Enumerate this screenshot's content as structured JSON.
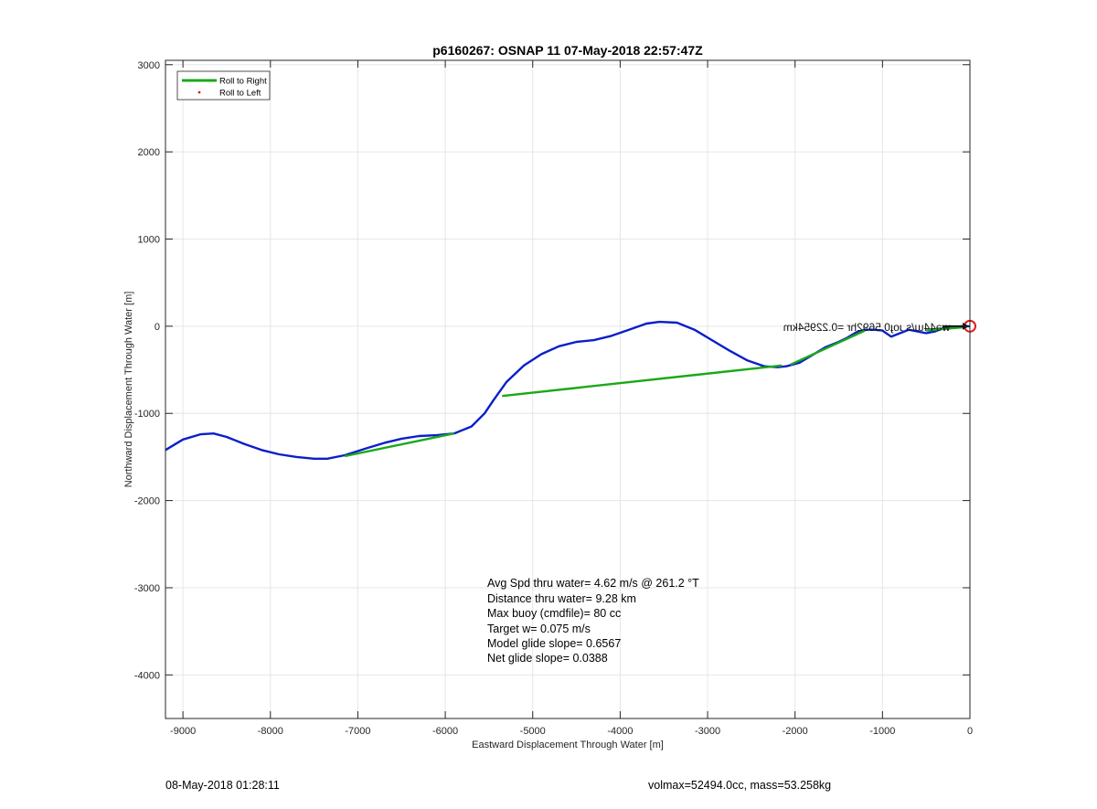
{
  "chart_data": {
    "type": "line",
    "title": "p6160267: OSNAP 11 07-May-2018 22:57:47Z",
    "xlabel": "Eastward Displacement Through Water [m]",
    "ylabel": "Northward Displacement Through Water [m]",
    "xlim": [
      -9200,
      0
    ],
    "ylim": [
      -4500,
      3050
    ],
    "xticks": [
      -9000,
      -8000,
      -7000,
      -6000,
      -5000,
      -4000,
      -3000,
      -2000,
      -1000,
      0
    ],
    "yticks": [
      3000,
      2000,
      1000,
      0,
      -1000,
      -2000,
      -3000,
      -4000
    ],
    "grid": true,
    "legend_position": "top-left",
    "legend": [
      {
        "label": "Roll to Right",
        "color": "#1aa81a",
        "style": "line"
      },
      {
        "label": "Roll to Left",
        "color": "#e31a1a",
        "style": "dot"
      }
    ],
    "series": [
      {
        "color": "#0a1fc8",
        "x": [
          -9200,
          -9000,
          -8800,
          -8650,
          -8500,
          -8300,
          -8100,
          -7900,
          -7700,
          -7500,
          -7350,
          -7150,
          -6900,
          -6700,
          -6500,
          -6300,
          -6100,
          -5900,
          -5700,
          -5550,
          -5450,
          -5300,
          -5100,
          -4900,
          -4700,
          -4500,
          -4300,
          -4100,
          -3900,
          -3700,
          -3550,
          -3350,
          -3150,
          -2950,
          -2750,
          -2550,
          -2350,
          -2200,
          -2100,
          -1950,
          -1800,
          -1650,
          -1500,
          -1400,
          -1300,
          -1200,
          -1100,
          -1000,
          -900,
          -800,
          -700,
          -600,
          -500,
          -400,
          -300,
          -200,
          -100,
          0
        ],
        "y": [
          -1420,
          -1300,
          -1240,
          -1230,
          -1270,
          -1350,
          -1420,
          -1470,
          -1500,
          -1520,
          -1520,
          -1480,
          -1400,
          -1340,
          -1290,
          -1260,
          -1250,
          -1230,
          -1150,
          -1000,
          -850,
          -640,
          -450,
          -320,
          -230,
          -180,
          -160,
          -110,
          -40,
          30,
          50,
          40,
          -40,
          -160,
          -280,
          -390,
          -460,
          -470,
          -460,
          -420,
          -330,
          -240,
          -180,
          -130,
          -70,
          -40,
          -40,
          -50,
          -120,
          -80,
          -40,
          -60,
          -80,
          -60,
          -20,
          -20,
          0,
          0
        ]
      },
      {
        "name": "Roll to Right",
        "color": "#1aa81a",
        "segments": [
          {
            "x": [
              -7150,
              -5900
            ],
            "y": [
              -1490,
              -1230
            ]
          },
          {
            "x": [
              -5350,
              -2150
            ],
            "y": [
              -800,
              -450
            ]
          },
          {
            "x": [
              -2050,
              -1200
            ],
            "y": [
              -440,
              -50
            ]
          },
          {
            "x": [
              -500,
              -50
            ],
            "y": [
              -50,
              -10
            ]
          }
        ]
      }
    ],
    "marker_end": {
      "x": 0,
      "y": 0,
      "color": "#e31a1a",
      "shape": "circle"
    },
    "overlay_text": "wǝ44ɯ/s ɹoɟ0.5692hr =0.22954km",
    "annotations": [
      "Avg Spd thru water=  4.62 m/s @ 261.2 °T",
      "Distance thru water=  9.28 km",
      "Max buoy (cmdfile)= 80 cc",
      "Target w= 0.075 m/s",
      "Model glide slope= 0.6567",
      "Net glide slope= 0.0388"
    ]
  },
  "footer": {
    "left": "08-May-2018 01:28:11",
    "right": "volmax=52494.0cc, mass=53.258kg"
  }
}
